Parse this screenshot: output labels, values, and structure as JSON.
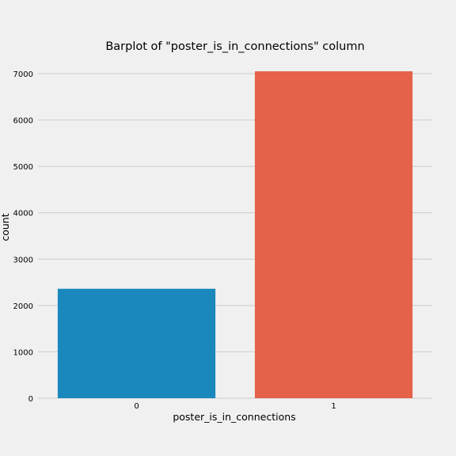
{
  "chart_data": {
    "type": "bar",
    "title": "Barplot of \"poster_is_in_connections\" column",
    "xlabel": "poster_is_in_connections",
    "ylabel": "count",
    "categories": [
      "0",
      "1"
    ],
    "values": [
      2360,
      7050
    ],
    "colors": [
      "#1a88bd",
      "#e5614a"
    ],
    "ylim": [
      0,
      7000
    ],
    "yticks": [
      0,
      1000,
      2000,
      3000,
      4000,
      5000,
      6000,
      7000
    ],
    "grid": "horizontal",
    "legend": "none"
  },
  "colors": {
    "background": "#f0f0f0",
    "grid": "#cbcbcb"
  }
}
